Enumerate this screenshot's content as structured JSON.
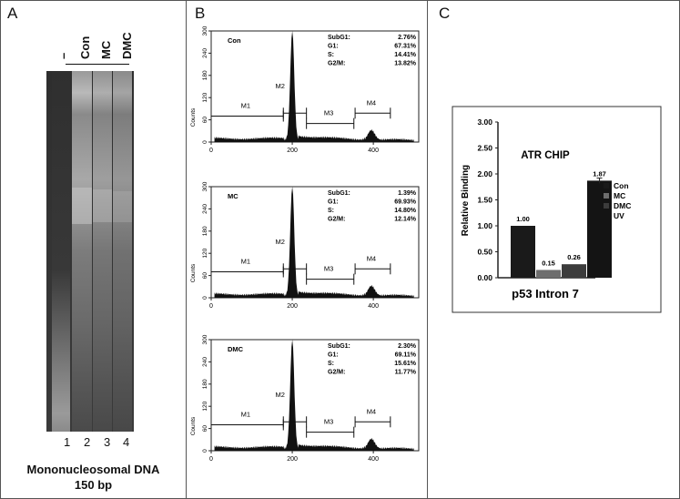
{
  "panels": {
    "a": {
      "letter": "A",
      "lanes": [
        "–",
        "Con",
        "MC",
        "DMC"
      ],
      "lane_numbers": [
        "1",
        "2",
        "3",
        "4"
      ],
      "caption_line1": "Mononucleosomal DNA",
      "caption_line2": "150 bp"
    },
    "b": {
      "letter": "B",
      "ylabel": "Counts",
      "yticks": [
        "0",
        "60",
        "120",
        "180",
        "240",
        "300"
      ],
      "xticks": [
        "0",
        "200",
        "400"
      ],
      "gates": [
        "M1",
        "M2",
        "M3",
        "M4"
      ],
      "histograms": [
        {
          "name": "Con",
          "stats": [
            [
              "SubG1:",
              "2.76%"
            ],
            [
              "G1:",
              "67.31%"
            ],
            [
              "S:",
              "14.41%"
            ],
            [
              "G2/M:",
              "13.82%"
            ]
          ]
        },
        {
          "name": "MC",
          "stats": [
            [
              "SubG1:",
              "1.39%"
            ],
            [
              "G1:",
              "69.93%"
            ],
            [
              "S:",
              "14.80%"
            ],
            [
              "G2/M:",
              "12.14%"
            ]
          ]
        },
        {
          "name": "DMC",
          "stats": [
            [
              "SubG1:",
              "2.30%"
            ],
            [
              "G1:",
              "69.11%"
            ],
            [
              "S:",
              "15.61%"
            ],
            [
              "G2/M:",
              "11.77%"
            ]
          ]
        }
      ]
    },
    "c": {
      "letter": "C"
    }
  },
  "chart_data": {
    "type": "bar",
    "title": "ATR CHIP",
    "xlabel": "p53 Intron 7",
    "ylabel": "Relative Binding",
    "ylim": [
      0,
      3.0
    ],
    "yticks": [
      "0.00",
      "0.50",
      "1.00",
      "1.50",
      "2.00",
      "2.50",
      "3.00"
    ],
    "categories": [
      "Con",
      "MC",
      "DMC",
      "UV"
    ],
    "values": [
      1.0,
      0.15,
      0.26,
      1.87
    ],
    "value_labels": [
      "1.00",
      "0.15",
      "0.26",
      "1.87"
    ],
    "colors": [
      "#1a1a1a",
      "#6e6e6e",
      "#3c3c3c",
      "#141414"
    ],
    "legend": [
      "Con",
      "MC",
      "DMC",
      "UV"
    ],
    "legend_position": "right"
  }
}
